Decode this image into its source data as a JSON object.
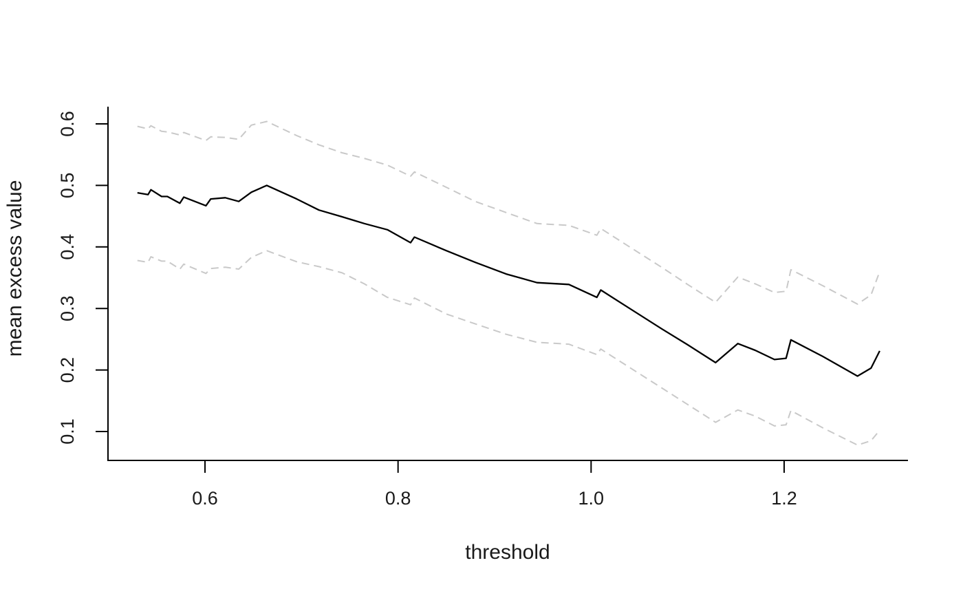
{
  "chart_data": {
    "type": "line",
    "title": "",
    "xlabel": "threshold",
    "ylabel": "mean excess value",
    "x_ticks": [
      0.6,
      0.8,
      1.0,
      1.2
    ],
    "y_ticks": [
      0.1,
      0.2,
      0.3,
      0.4,
      0.5,
      0.6
    ],
    "xlim": [
      0.4995,
      1.3283
    ],
    "ylim": [
      0.053,
      0.628
    ],
    "grid": false,
    "legend_position": "none",
    "box_type": "L",
    "x": [
      0.53,
      0.541,
      0.544,
      0.555,
      0.561,
      0.574,
      0.578,
      0.601,
      0.606,
      0.621,
      0.635,
      0.648,
      0.664,
      0.695,
      0.718,
      0.742,
      0.765,
      0.789,
      0.813,
      0.817,
      0.85,
      0.88,
      0.912,
      0.944,
      0.977,
      1.006,
      1.01,
      1.04,
      1.073,
      1.1,
      1.129,
      1.152,
      1.17,
      1.19,
      1.202,
      1.207,
      1.24,
      1.276,
      1.29,
      1.299
    ],
    "series": [
      {
        "id": "mean-excess-line",
        "name": "mean excess",
        "style": "solid",
        "color": "#000000",
        "width": 2.3,
        "values": [
          0.488,
          0.485,
          0.493,
          0.482,
          0.482,
          0.471,
          0.481,
          0.467,
          0.478,
          0.48,
          0.474,
          0.489,
          0.5,
          0.478,
          0.46,
          0.449,
          0.438,
          0.428,
          0.407,
          0.416,
          0.394,
          0.375,
          0.356,
          0.342,
          0.339,
          0.318,
          0.33,
          0.3,
          0.267,
          0.241,
          0.212,
          0.243,
          0.232,
          0.217,
          0.219,
          0.249,
          0.222,
          0.19,
          0.203,
          0.231
        ]
      },
      {
        "id": "upper-ci-line",
        "name": "upper 95% confidence band",
        "style": "dashed",
        "color": "#c9c9c9",
        "width": 2.0,
        "values": [
          0.596,
          0.592,
          0.597,
          0.588,
          0.587,
          0.582,
          0.586,
          0.573,
          0.579,
          0.578,
          0.575,
          0.598,
          0.604,
          0.581,
          0.566,
          0.553,
          0.544,
          0.533,
          0.515,
          0.522,
          0.497,
          0.474,
          0.456,
          0.438,
          0.435,
          0.419,
          0.43,
          0.4,
          0.367,
          0.339,
          0.31,
          0.351,
          0.34,
          0.326,
          0.328,
          0.363,
          0.337,
          0.307,
          0.322,
          0.36
        ]
      },
      {
        "id": "lower-ci-line",
        "name": "lower 95% confidence band",
        "style": "dashed",
        "color": "#c9c9c9",
        "width": 2.0,
        "values": [
          0.378,
          0.375,
          0.384,
          0.377,
          0.377,
          0.364,
          0.372,
          0.357,
          0.365,
          0.367,
          0.364,
          0.383,
          0.394,
          0.376,
          0.368,
          0.358,
          0.34,
          0.318,
          0.306,
          0.317,
          0.291,
          0.275,
          0.258,
          0.245,
          0.242,
          0.225,
          0.234,
          0.204,
          0.171,
          0.144,
          0.115,
          0.135,
          0.125,
          0.109,
          0.111,
          0.134,
          0.106,
          0.078,
          0.085,
          0.102
        ]
      }
    ]
  },
  "colors": {
    "background": "#ffffff",
    "axis": "#000000",
    "text": "#1a1a1a",
    "band": "#c9c9c9"
  }
}
